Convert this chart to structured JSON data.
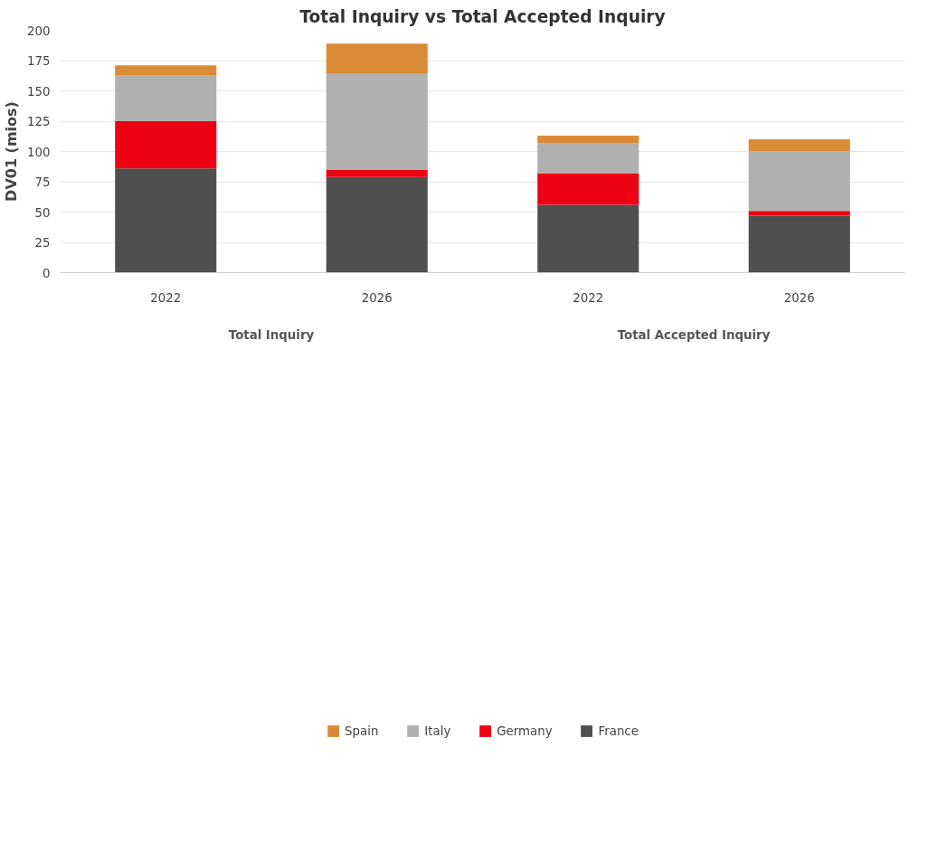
{
  "chart_data": {
    "type": "bar",
    "title": "Total Inquiry vs Total Accepted Inquiry",
    "ylabel": "DV01 (mios)",
    "categories": [
      "2022",
      "2026",
      "2022",
      "2026"
    ],
    "annotations": [
      "Total Inquiry",
      "Total Accepted Inquiry"
    ],
    "stacked": true,
    "series": [
      {
        "name": "France",
        "color": "#4f4f4f",
        "values": [
          86,
          79,
          56,
          47
        ]
      },
      {
        "name": "Germany",
        "color": "#ee0014",
        "values": [
          39,
          6,
          26,
          4
        ]
      },
      {
        "name": "Italy",
        "color": "#b0b0b0",
        "values": [
          38,
          79,
          25,
          49
        ]
      },
      {
        "name": "Spain",
        "color": "#d98b35",
        "values": [
          8,
          25,
          6,
          10
        ]
      }
    ],
    "ylim": [
      0,
      200
    ],
    "yticks": [
      0,
      25,
      50,
      75,
      100,
      125,
      150,
      175,
      200
    ],
    "grid": "y",
    "legend": "bottom"
  }
}
